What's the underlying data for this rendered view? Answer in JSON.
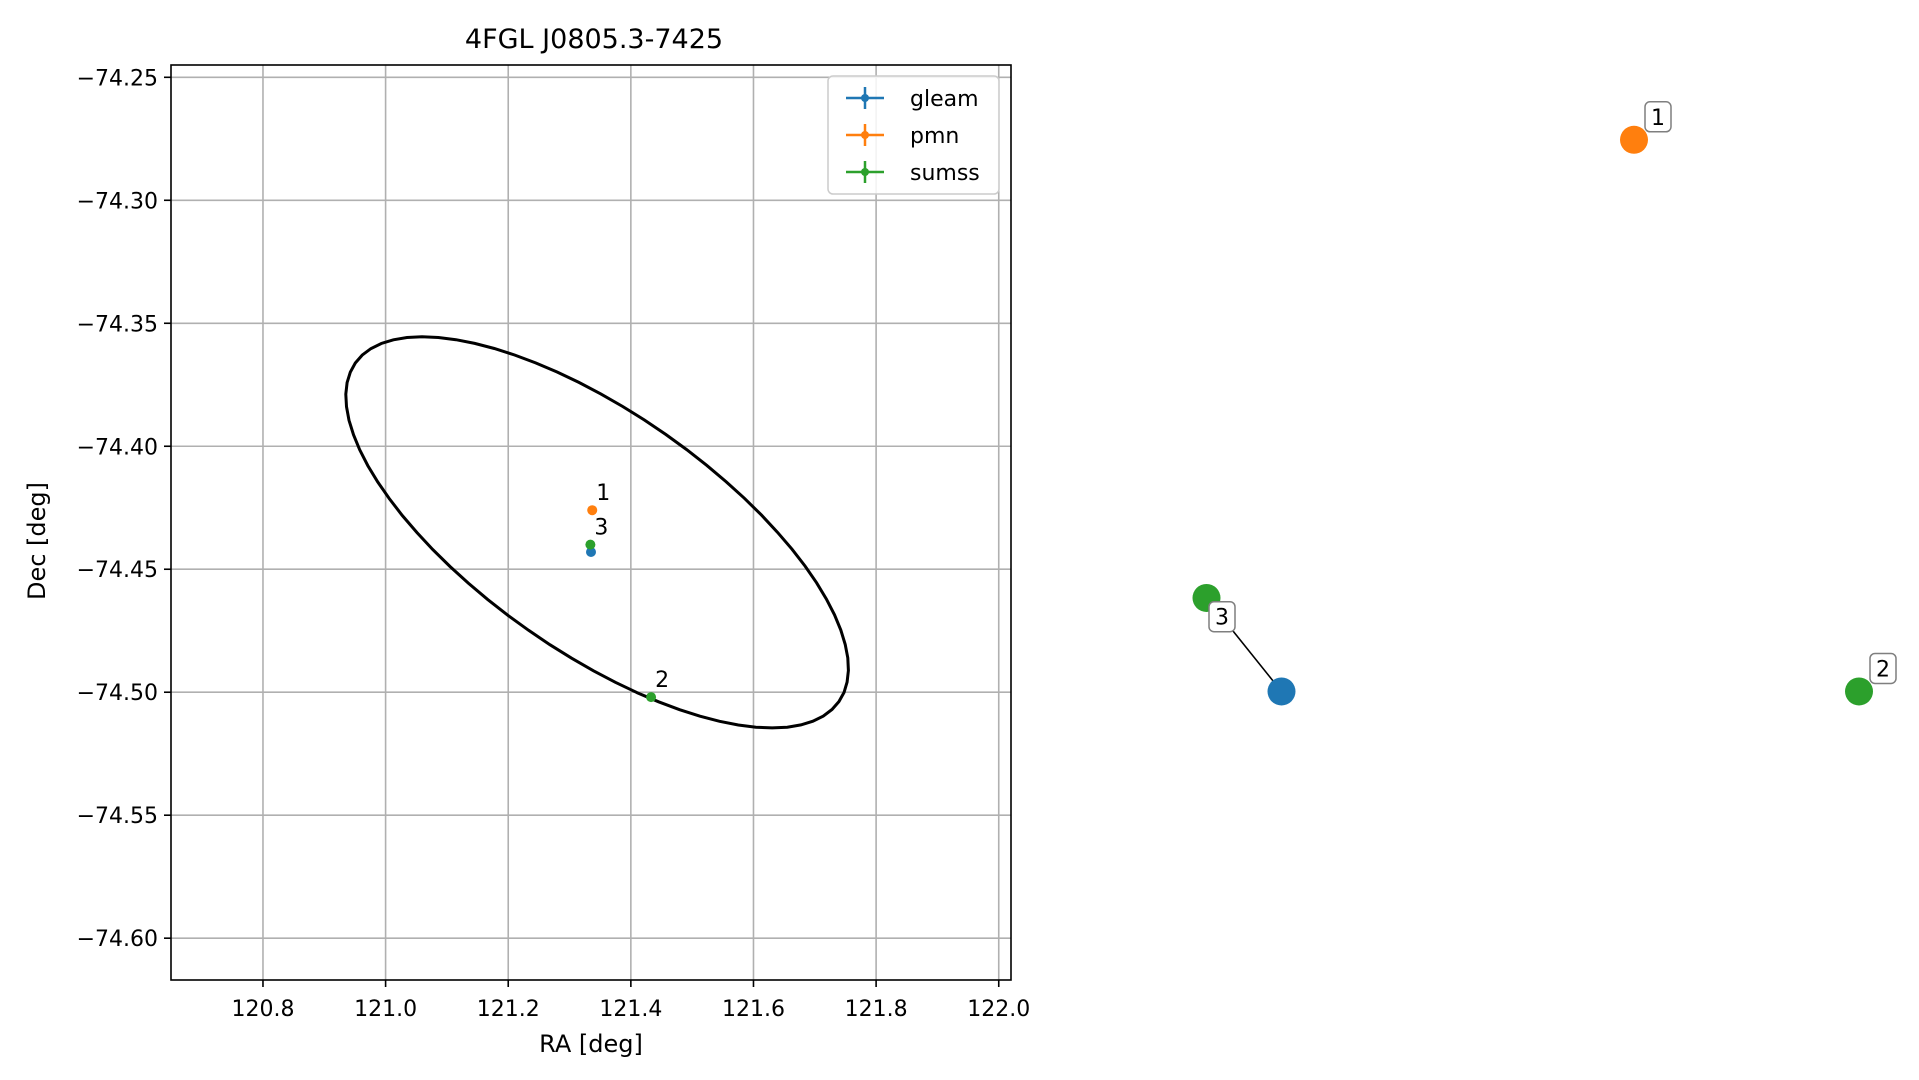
{
  "chart_data": [
    {
      "type": "scatter",
      "title": "4FGL J0805.3-7425",
      "xlabel": "RA [deg]",
      "ylabel": "Dec [deg]",
      "xlim": [
        120.65,
        122.02
      ],
      "ylim": [
        -74.617,
        -74.245
      ],
      "xticks": [
        "120.8",
        "121.0",
        "121.2",
        "121.4",
        "121.6",
        "121.8",
        "122.0"
      ],
      "yticks": [
        "−74.25",
        "−74.30",
        "−74.35",
        "−74.40",
        "−74.45",
        "−74.50",
        "−74.55",
        "−74.60"
      ],
      "grid": true,
      "legend_position": "top-right",
      "colors": {
        "gleam": "#1f77b4",
        "pmn": "#ff7f0e",
        "sumss": "#2ca02c"
      },
      "series": [
        {
          "name": "gleam",
          "x": [
            121.335
          ],
          "y": [
            -74.443
          ]
        },
        {
          "name": "pmn",
          "x": [
            121.337
          ],
          "y": [
            -74.426
          ]
        },
        {
          "name": "sumss",
          "x": [
            121.334,
            121.433
          ],
          "y": [
            -74.44,
            -74.502
          ]
        }
      ],
      "annotations": [
        {
          "text": "1",
          "x": 121.337,
          "y": -74.426
        },
        {
          "text": "3",
          "x": 121.334,
          "y": -74.44
        },
        {
          "text": "2",
          "x": 121.433,
          "y": -74.502
        }
      ],
      "ellipse": {
        "center": [
          121.345,
          -74.435
        ],
        "ra_halfwidth": 0.195,
        "dec_halfheight": 0.12,
        "tilt_deg": -55
      }
    },
    {
      "type": "scatter",
      "title": "",
      "axes": "off",
      "grid": false,
      "nodes": [
        {
          "series": "pmn",
          "label": "1",
          "x": 0.62,
          "y": 0.92
        },
        {
          "series": "sumss",
          "label": "",
          "x": 0.05,
          "y": 0.43
        },
        {
          "series": "gleam",
          "label": "",
          "x": 0.15,
          "y": 0.33
        },
        {
          "series": "sumss",
          "label": "2",
          "x": 0.92,
          "y": 0.33
        }
      ],
      "edges": [
        {
          "from": 1,
          "to": 2,
          "label": "3"
        }
      ]
    }
  ]
}
